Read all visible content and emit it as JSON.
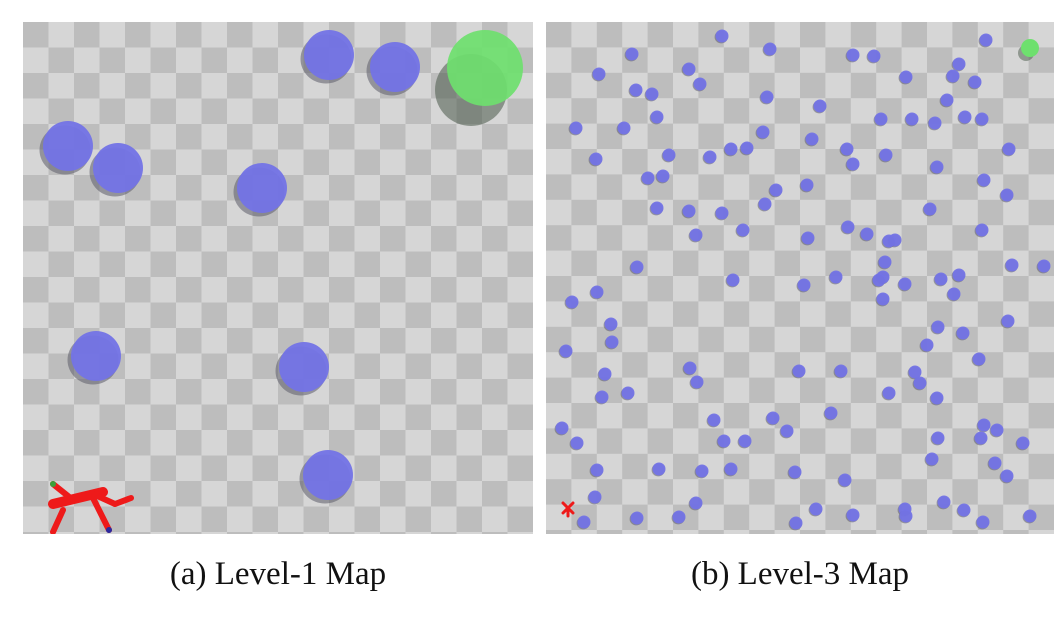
{
  "panels": [
    {
      "id": "a",
      "caption": "(a) Level-1 Map"
    },
    {
      "id": "b",
      "caption": "(b) Level-3 Map"
    }
  ],
  "colors": {
    "floor_light": "#d6d6d6",
    "floor_dark": "#bdbdbd",
    "obstacle": "#7373e6",
    "goal": "#6ee06e",
    "agent": "#ee1a1a"
  }
}
